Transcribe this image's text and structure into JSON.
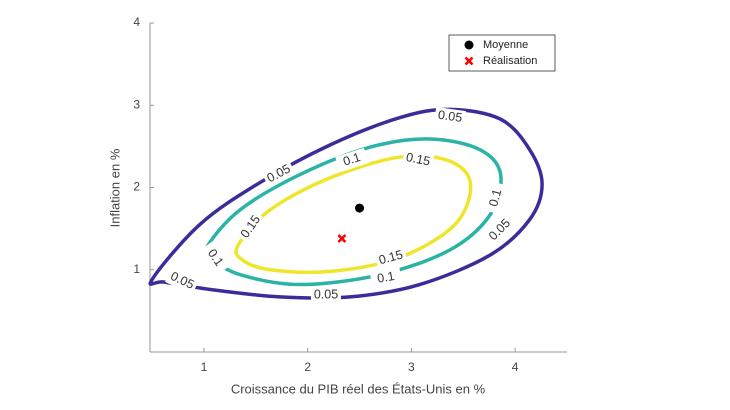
{
  "chart_data": {
    "type": "contour",
    "xlabel": "Croissance du PIB réel des États-Unis en %",
    "ylabel": "Inflation en %",
    "xlim": [
      0.48,
      4.5
    ],
    "ylim": [
      0,
      4
    ],
    "xticks": [
      1,
      2,
      3,
      4
    ],
    "yticks": [
      1,
      2,
      3,
      4
    ],
    "legend": "upper right",
    "contours": [
      {
        "level": 0.05,
        "color": "#3a2d9a",
        "x": [
          0.5,
          0.96,
          1.54,
          2.22,
          2.89,
          3.37,
          3.86,
          4.14,
          4.26,
          4.14,
          3.76,
          3.08,
          2.41,
          1.73,
          1.06,
          0.62
        ],
        "y": [
          0.88,
          1.55,
          2.06,
          2.52,
          2.85,
          2.95,
          2.83,
          2.46,
          2.04,
          1.61,
          1.18,
          0.82,
          0.67,
          0.67,
          0.76,
          0.85
        ]
      },
      {
        "level": 0.1,
        "color": "#2bb3a6",
        "x": [
          1.04,
          1.35,
          1.93,
          2.6,
          3.18,
          3.66,
          3.86,
          3.76,
          3.37,
          2.7,
          1.93,
          1.35,
          1.06
        ],
        "y": [
          1.3,
          1.73,
          2.16,
          2.49,
          2.59,
          2.46,
          2.16,
          1.67,
          1.24,
          0.94,
          0.82,
          0.94,
          1.15
        ]
      },
      {
        "level": 0.15,
        "color": "#efe52b",
        "x": [
          1.33,
          1.64,
          2.22,
          2.89,
          3.37,
          3.57,
          3.42,
          2.89,
          2.22,
          1.64,
          1.37
        ],
        "y": [
          1.3,
          1.73,
          2.12,
          2.37,
          2.32,
          2.04,
          1.55,
          1.15,
          0.98,
          1.0,
          1.12
        ]
      }
    ],
    "points": [
      {
        "name": "Moyenne",
        "color": "#000000",
        "marker": "circle",
        "x": 2.5,
        "y": 1.75
      },
      {
        "name": "Réalisation",
        "color": "#ff0000",
        "marker": "x",
        "x": 2.33,
        "y": 1.38
      }
    ]
  }
}
